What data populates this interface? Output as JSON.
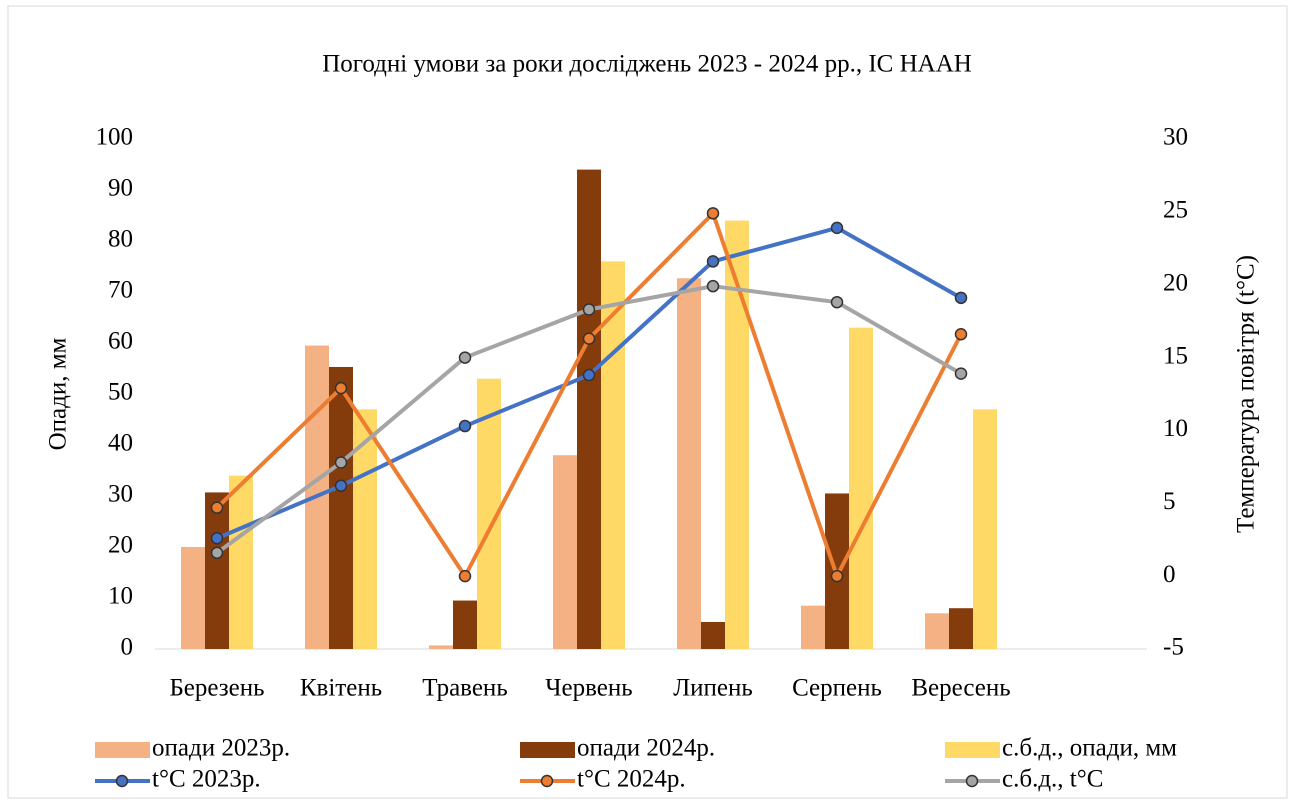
{
  "chart_data": {
    "type": "bar",
    "title": "Погодні умови за роки досліджень 2023 - 2024 рр., ІС НААН",
    "y_label": "Опади, мм",
    "y2_label": "Температура повітря (t°C)",
    "categories": [
      "Березень",
      "Квітень",
      "Травень",
      "Червень",
      "Липень",
      "Серпень",
      "Вересень",
      null
    ],
    "series": [
      {
        "name": "опади 2023р.",
        "type": "bar",
        "color": "#f4b183",
        "values": [
          20,
          59.5,
          0.7,
          38,
          72.7,
          8.5,
          7,
          null
        ]
      },
      {
        "name": "опади 2024р.",
        "type": "bar",
        "color": "#843c0c",
        "values": [
          30.7,
          55.3,
          9.5,
          94,
          5.3,
          30.5,
          8,
          null
        ]
      },
      {
        "name": "с.б.д., опади, мм",
        "type": "bar",
        "color": "#ffd966",
        "values": [
          34,
          47,
          53,
          76,
          84,
          63,
          47,
          null
        ]
      },
      {
        "name": "t°C 2023р.",
        "type": "line",
        "axis": "y2",
        "color": "#4472c4",
        "values": [
          2.6,
          6.2,
          10.3,
          13.8,
          21.6,
          23.9,
          19.1,
          null
        ]
      },
      {
        "name": "t°C 2024р.",
        "type": "line",
        "axis": "y2",
        "color": "#ed7d31",
        "values": [
          4.7,
          12.9,
          0,
          16.3,
          24.9,
          0,
          16.6,
          null
        ]
      },
      {
        "name": "с.б.д., t°C",
        "type": "line",
        "axis": "y2",
        "color": "#a5a5a5",
        "values": [
          1.6,
          7.8,
          15,
          18.3,
          19.9,
          18.8,
          13.9,
          null
        ]
      }
    ],
    "ylim": [
      0,
      100
    ],
    "yticks": [
      0,
      10,
      20,
      30,
      40,
      50,
      60,
      70,
      80,
      90,
      100
    ],
    "y2lim": [
      -5,
      30
    ],
    "y2ticks": [
      -5,
      0,
      5,
      10,
      15,
      20,
      25,
      30
    ],
    "legend": "bottom"
  }
}
